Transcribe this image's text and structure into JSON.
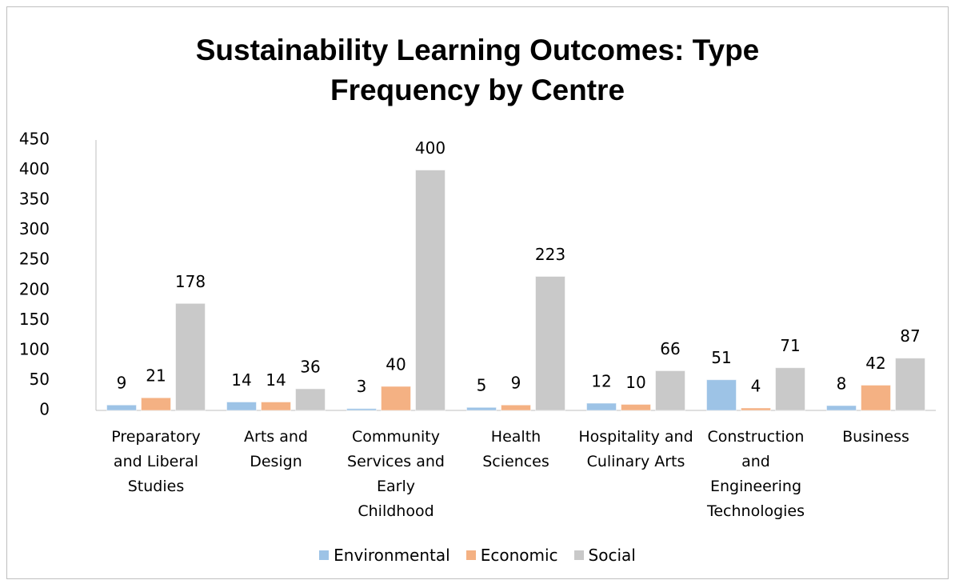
{
  "chart_data": {
    "type": "bar",
    "title": "Sustainability Learning Outcomes: Type Frequency by Centre",
    "categories": [
      "Preparatory and Liberal Studies",
      "Arts and Design",
      "Community Services and Early Childhood",
      "Health Sciences",
      "Hospitality and Culinary Arts",
      "Construction and Engineering Technologies",
      "Business"
    ],
    "series": [
      {
        "name": "Environmental",
        "color": "#9dc3e6",
        "values": [
          9,
          14,
          3,
          5,
          12,
          51,
          8
        ]
      },
      {
        "name": "Economic",
        "color": "#f4b183",
        "values": [
          21,
          14,
          40,
          9,
          10,
          4,
          42
        ]
      },
      {
        "name": "Social",
        "color": "#c9c9c9",
        "values": [
          178,
          36,
          400,
          223,
          66,
          71,
          87
        ]
      }
    ],
    "ylim": [
      0,
      450
    ],
    "yticks": [
      0,
      50,
      100,
      150,
      200,
      250,
      300,
      350,
      400,
      450
    ],
    "grid": false,
    "legend": "bottom"
  }
}
